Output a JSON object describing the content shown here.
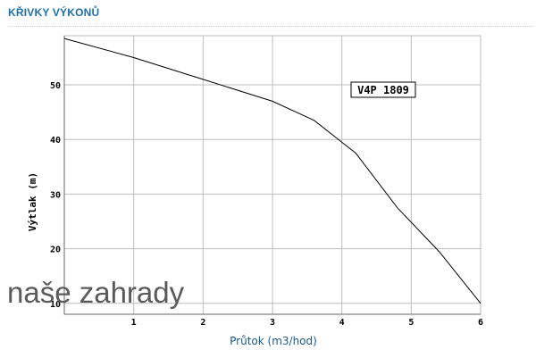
{
  "header": {
    "title": "KŘIVKY VÝKONŮ"
  },
  "watermark": "naše zahrady",
  "chart_data": {
    "type": "line",
    "xlabel": "Průtok (m3/hod)",
    "ylabel": "Výtlak (m)",
    "xlim": [
      0,
      6
    ],
    "ylim": [
      8,
      59
    ],
    "xticks": [
      1,
      2,
      3,
      4,
      5,
      6
    ],
    "yticks": [
      10,
      20,
      30,
      40,
      50
    ],
    "grid": true,
    "series": [
      {
        "name": "V4P 1809",
        "x": [
          0,
          1,
          2,
          3,
          3.6,
          4.2,
          4.8,
          5.4,
          6
        ],
        "y": [
          58.5,
          55,
          51,
          47,
          43.5,
          37.5,
          27.5,
          19.5,
          10
        ]
      }
    ]
  }
}
